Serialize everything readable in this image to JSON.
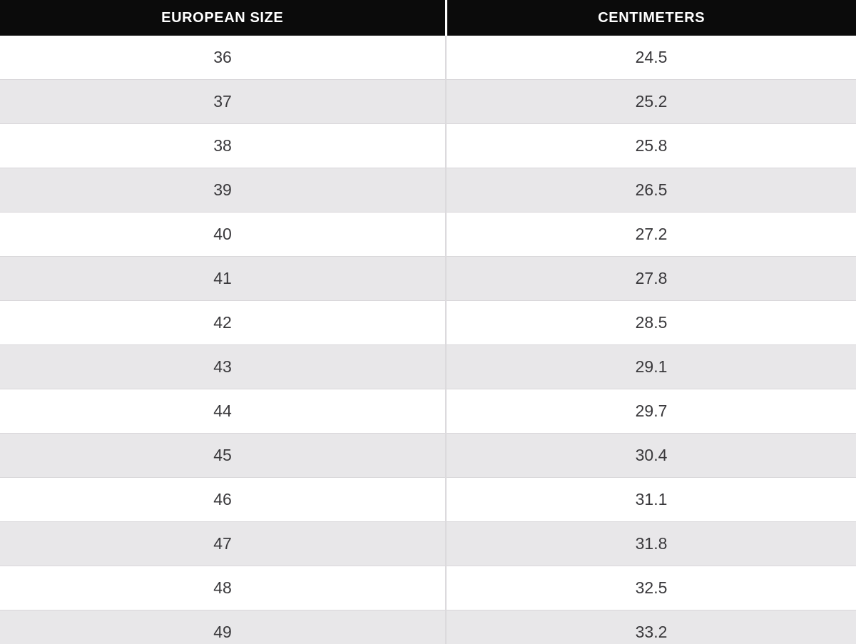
{
  "table": {
    "headers": {
      "size": "EUROPEAN SIZE",
      "cm": "CENTIMETERS"
    },
    "rows": [
      [
        "36",
        "24.5"
      ],
      [
        "37",
        "25.2"
      ],
      [
        "38",
        "25.8"
      ],
      [
        "39",
        "26.5"
      ],
      [
        "40",
        "27.2"
      ],
      [
        "41",
        "27.8"
      ],
      [
        "42",
        "28.5"
      ],
      [
        "43",
        "29.1"
      ],
      [
        "44",
        "29.7"
      ],
      [
        "45",
        "30.4"
      ],
      [
        "46",
        "31.1"
      ],
      [
        "47",
        "31.8"
      ],
      [
        "48",
        "32.5"
      ],
      [
        "49",
        "33.2"
      ]
    ]
  },
  "colors": {
    "header_bg": "#0b0b0b",
    "header_text": "#ffffff",
    "row_bg": "#ffffff",
    "row_alt_bg": "#e8e7e9",
    "cell_text": "#39383b",
    "row_border": "#d9d7da",
    "column_divider": "#dcdadd"
  },
  "chart_data": {
    "type": "table",
    "title": "European shoe size to centimeters conversion",
    "columns": [
      "EUROPEAN SIZE",
      "CENTIMETERS"
    ],
    "rows": [
      [
        36,
        24.5
      ],
      [
        37,
        25.2
      ],
      [
        38,
        25.8
      ],
      [
        39,
        26.5
      ],
      [
        40,
        27.2
      ],
      [
        41,
        27.8
      ],
      [
        42,
        28.5
      ],
      [
        43,
        29.1
      ],
      [
        44,
        29.7
      ],
      [
        45,
        30.4
      ],
      [
        46,
        31.1
      ],
      [
        47,
        31.8
      ],
      [
        48,
        32.5
      ],
      [
        49,
        33.2
      ]
    ],
    "layout": {
      "header_style": "black-bar",
      "stripes": "alternating",
      "first_row_stripe": "white"
    }
  }
}
